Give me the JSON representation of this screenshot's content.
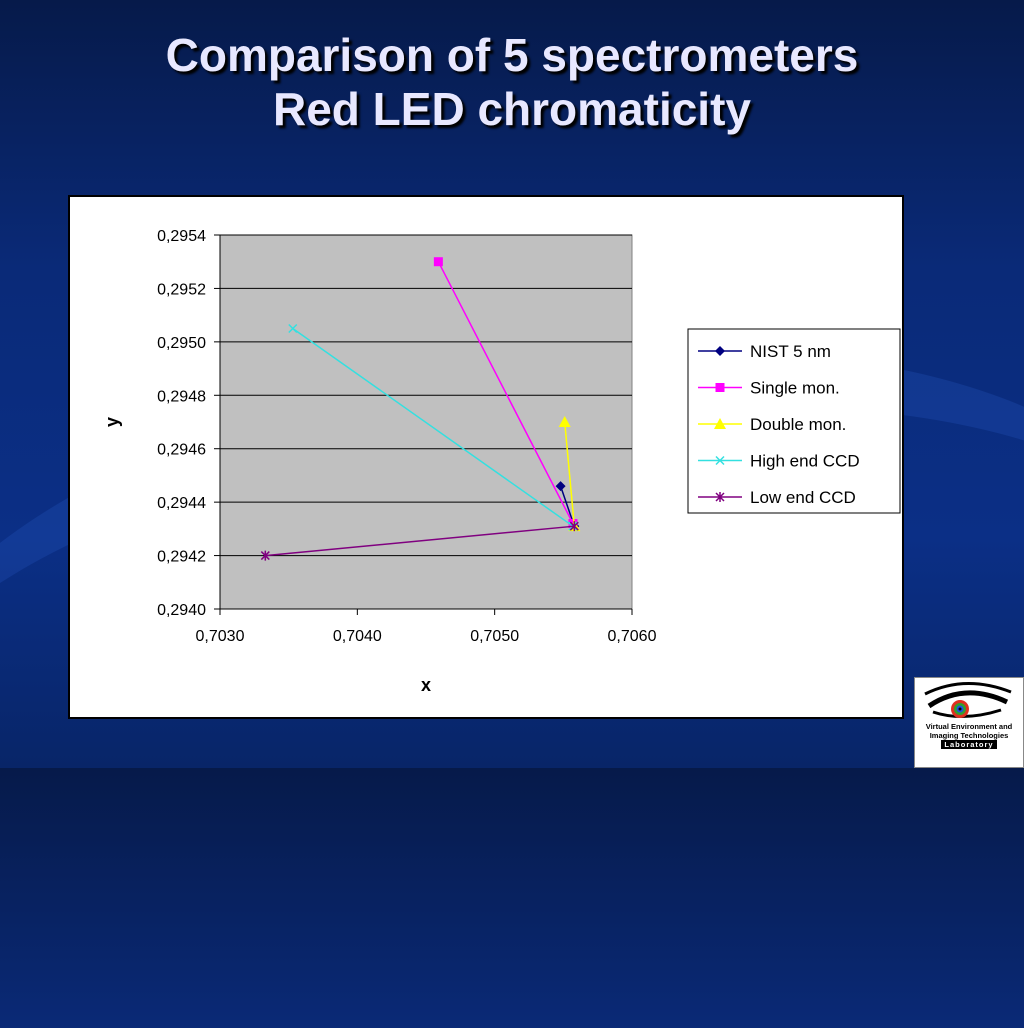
{
  "slide": {
    "title_line1": "Comparison of 5 spectrometers",
    "title_line2": "Red LED chromaticity"
  },
  "logo": {
    "line1": "Virtual Environment and",
    "line2": "Imaging Technologies",
    "line3": "Laboratory"
  },
  "chart_data": {
    "type": "scatter",
    "xlabel": "x",
    "ylabel": "y",
    "xlim": [
      0.703,
      0.706
    ],
    "ylim": [
      0.294,
      0.2954
    ],
    "xticks": [
      "0,7030",
      "0,7040",
      "0,7050",
      "0,7060"
    ],
    "yticks": [
      "0,2940",
      "0,2942",
      "0,2944",
      "0,2946",
      "0,2948",
      "0,2950",
      "0,2952",
      "0,2954"
    ],
    "grid": "horizontal",
    "plot_background": "#c0c0c0",
    "legend_position": "right",
    "series": [
      {
        "name": "NIST 5 nm",
        "color": "#000080",
        "marker": "diamond",
        "points": [
          [
            0.70548,
            0.29446
          ],
          [
            0.70558,
            0.29431
          ]
        ]
      },
      {
        "name": "Single mon.",
        "color": "#ff00ff",
        "marker": "square",
        "points": [
          [
            0.70459,
            0.2953
          ],
          [
            0.70557,
            0.29432
          ]
        ]
      },
      {
        "name": "Double mon.",
        "color": "#ffff00",
        "marker": "triangle",
        "points": [
          [
            0.70551,
            0.2947
          ],
          [
            0.70558,
            0.29431
          ]
        ]
      },
      {
        "name": "High end CCD",
        "color": "#33e0e0",
        "marker": "x",
        "points": [
          [
            0.70353,
            0.29505
          ],
          [
            0.70557,
            0.29431
          ]
        ]
      },
      {
        "name": "Low end CCD",
        "color": "#800080",
        "marker": "star",
        "points": [
          [
            0.70333,
            0.2942
          ],
          [
            0.70558,
            0.29431
          ]
        ]
      }
    ]
  }
}
